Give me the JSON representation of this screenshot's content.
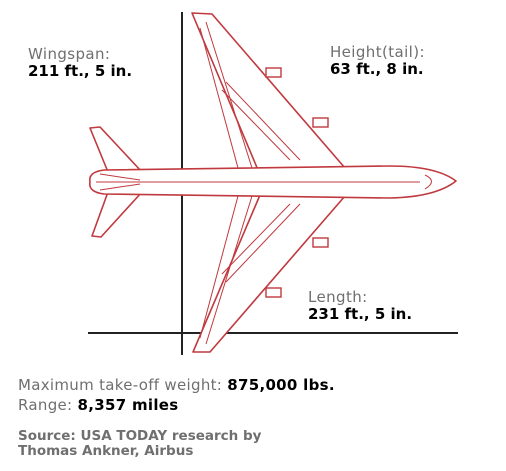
{
  "dimensions": {
    "wingspan": {
      "label": "Wingspan:",
      "value": "211 ft., 5 in."
    },
    "height": {
      "label": "Height(tail):",
      "value": "63 ft., 8 in."
    },
    "length": {
      "label": "Length:",
      "value": "231 ft., 5 in."
    }
  },
  "stats": {
    "weight_label": "Maximum take-off weight:",
    "weight_value": "875,000 lbs.",
    "range_label": "Range:",
    "range_value": "8,357 miles"
  },
  "source": {
    "line1": "Source: USA TODAY research by",
    "line2": "Thomas Ankner, Airbus"
  },
  "colors": {
    "outline": "#c0393e",
    "axis": "#222222"
  }
}
